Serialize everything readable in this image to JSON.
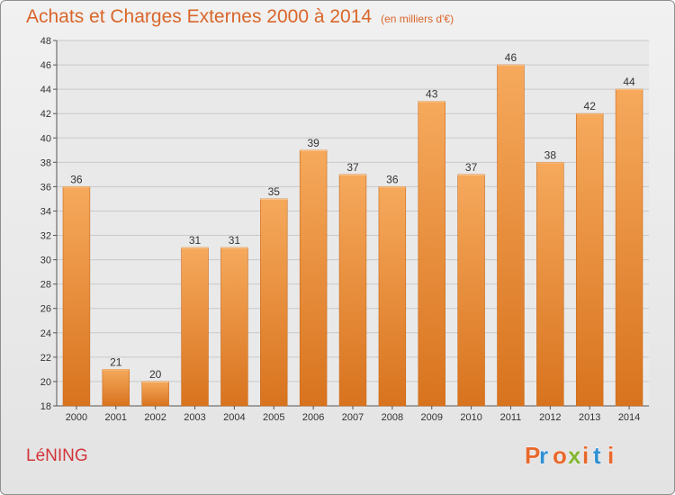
{
  "header": {
    "title": "Achats et Charges Externes 2000 à 2014",
    "subtitle": "(en milliers d'€)"
  },
  "footer": {
    "commune": "LéNING",
    "logo_text": "Proxiti"
  },
  "colors": {
    "title": "#d9662a",
    "commune": "#d2353a",
    "bar_light": "#f6a95c",
    "bar_dark": "#d8731e",
    "logo_letters": [
      "#e8682b",
      "#2f8fd2",
      "#e8682b",
      "#83b635",
      "#e8682b",
      "#2f8fd2",
      "#e8682b"
    ]
  },
  "chart_data": {
    "type": "bar",
    "title": "Achats et Charges Externes 2000 à 2014",
    "subtitle": "(en milliers d'€)",
    "categories": [
      "2000",
      "2001",
      "2002",
      "2003",
      "2004",
      "2005",
      "2006",
      "2007",
      "2008",
      "2009",
      "2010",
      "2011",
      "2012",
      "2013",
      "2014"
    ],
    "values": [
      36,
      21,
      20,
      31,
      31,
      35,
      39,
      37,
      36,
      43,
      37,
      46,
      38,
      42,
      44
    ],
    "ylim": [
      18,
      48
    ],
    "yticks": [
      18,
      20,
      22,
      24,
      26,
      28,
      30,
      32,
      34,
      36,
      38,
      40,
      42,
      44,
      46,
      48
    ],
    "grid": true,
    "data_labels": true,
    "legend": "none"
  }
}
